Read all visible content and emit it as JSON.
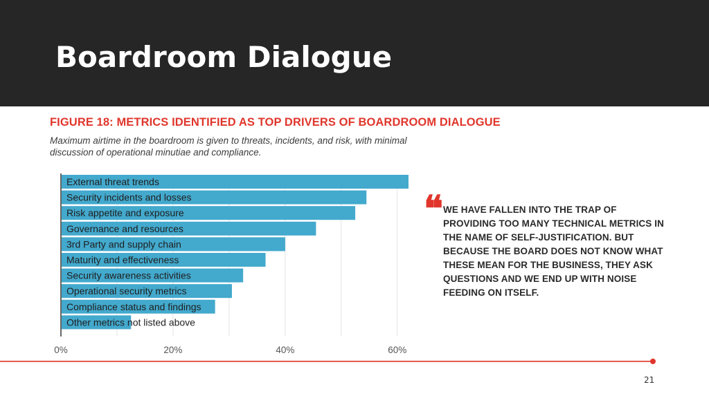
{
  "slide": {
    "title": "Boardroom Dialogue",
    "page_number": "21"
  },
  "figure": {
    "title": "FIGURE 18: METRICS IDENTIFIED AS TOP DRIVERS OF BOARDROOM DIALOGUE",
    "subtitle": "Maximum airtime in the boardroom is given to threats, incidents, and risk, with minimal discussion of operational minutiae and compliance."
  },
  "quote": {
    "mark": "❝",
    "text": "We have fallen into the trap of providing too many technical metrics in the name of self-justification. But because the board does not know what these mean for the business, they ask questions and we end up with noise feeding on itself."
  },
  "colors": {
    "bar": "#43a9cd",
    "accent": "#e0362c",
    "header_bg": "#262626"
  },
  "chart_data": {
    "type": "bar",
    "orientation": "horizontal",
    "categories": [
      "External threat trends",
      "Security incidents and losses",
      "Risk appetite and exposure",
      "Governance and resources",
      "3rd Party and supply chain",
      "Maturity and effectiveness",
      "Security awareness activities",
      "Operational security metrics",
      "Compliance status and findings",
      "Other metrics not listed above"
    ],
    "values": [
      62,
      54.5,
      52.5,
      45.5,
      40,
      36.5,
      32.5,
      30.5,
      27.5,
      12.5
    ],
    "xlim": [
      0,
      62
    ],
    "x_ticks": [
      0,
      20,
      40,
      60
    ],
    "x_tick_labels": [
      "0%",
      "20%",
      "40%",
      "60%"
    ],
    "grid": true
  }
}
